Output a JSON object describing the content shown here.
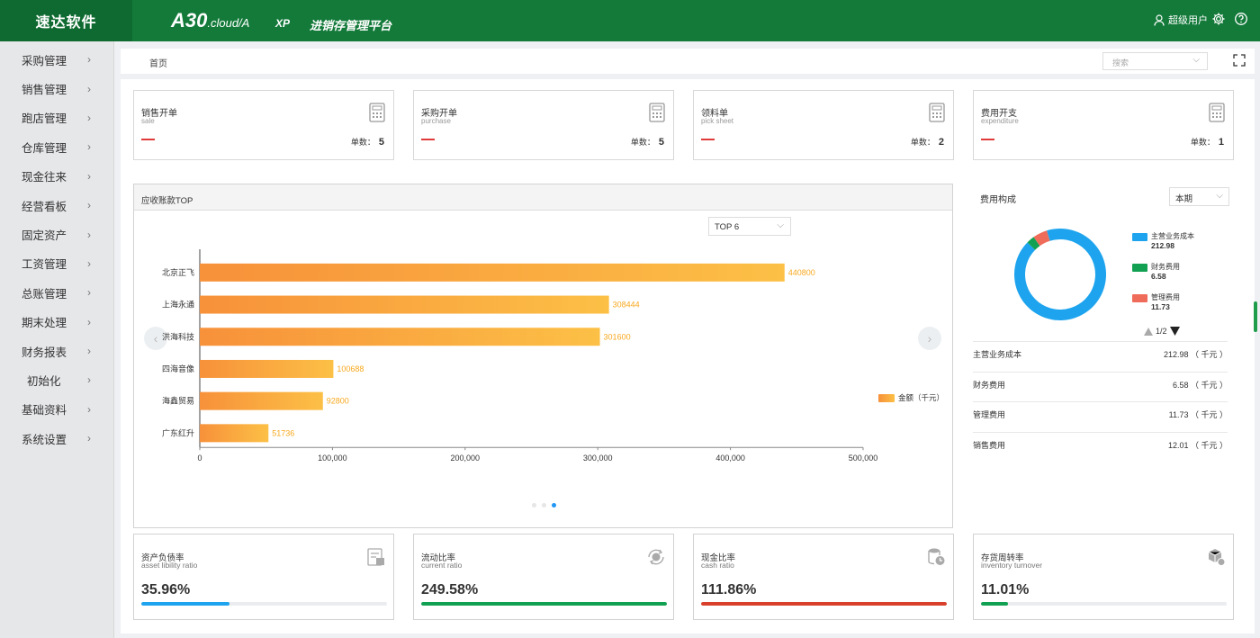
{
  "header": {
    "brand": "速达软件",
    "product_main": "A30",
    "product_sub": ".cloud/A",
    "edition": "XP",
    "platform": "进销存管理平台",
    "user": "超级用户"
  },
  "sidebar": {
    "items": [
      {
        "label": "采购管理"
      },
      {
        "label": "销售管理"
      },
      {
        "label": "跑店管理"
      },
      {
        "label": "仓库管理"
      },
      {
        "label": "现金往来"
      },
      {
        "label": "经营看板"
      },
      {
        "label": "固定资产"
      },
      {
        "label": "工资管理"
      },
      {
        "label": "总账管理"
      },
      {
        "label": "期末处理"
      },
      {
        "label": "财务报表"
      },
      {
        "label": "初始化"
      },
      {
        "label": "基础资料"
      },
      {
        "label": "系统设置"
      }
    ]
  },
  "breadcrumb": {
    "home": "首页"
  },
  "search": {
    "placeholder": "搜索"
  },
  "cards": [
    {
      "title": "销售开单",
      "subtitle": "sale",
      "count_label": "单数：",
      "count": "5"
    },
    {
      "title": "采购开单",
      "subtitle": "purchase",
      "count_label": "单数：",
      "count": "5"
    },
    {
      "title": "领料单",
      "subtitle": "pick sheet",
      "count_label": "单数：",
      "count": "2"
    },
    {
      "title": "费用开支",
      "subtitle": "expenditure",
      "count_label": "单数：",
      "count": "1"
    }
  ],
  "receivables": {
    "title": "应收账款TOP",
    "selector": "TOP 6",
    "legend": "金额（千元）"
  },
  "chart_data": {
    "type": "bar",
    "orientation": "horizontal",
    "categories": [
      "北京正飞",
      "上海永通",
      "洪海科技",
      "四海音像",
      "海鑫贸易",
      "广东红升"
    ],
    "series": [
      {
        "name": "金额（千元）",
        "values": [
          440800,
          308444,
          301600,
          100688,
          92800,
          51736
        ]
      }
    ],
    "xlim": [
      0,
      500000
    ],
    "xticks": [
      "0",
      "100,000",
      "200,000",
      "300,000",
      "400,000",
      "500,000"
    ],
    "colors": [
      "#f7913a",
      "#fcc046"
    ],
    "label_color": "#f7a81e"
  },
  "expense": {
    "title": "费用构成",
    "period": "本期",
    "pager": "1/2",
    "pie_data": [
      {
        "name": "主营业务成本",
        "value": "212.98",
        "color": "#1ea4ee"
      },
      {
        "name": "财务费用",
        "value": "6.58",
        "color": "#12a152"
      },
      {
        "name": "管理费用",
        "value": "11.73",
        "color": "#ef6b5a"
      }
    ],
    "rows": [
      {
        "name": "主营业务成本",
        "value": "212.98 （ 千元 ）"
      },
      {
        "name": "财务费用",
        "value": "6.58 （ 千元 ）"
      },
      {
        "name": "管理费用",
        "value": "11.73 （ 千元 ）"
      },
      {
        "name": "销售费用",
        "value": "12.01 （ 千元 ）"
      }
    ]
  },
  "ratios": [
    {
      "title": "资产负债率",
      "subtitle": "asset libility ratio",
      "value": "35.96%",
      "level": 0.36,
      "color": "#1ea4ee",
      "icon": "receipt-icon"
    },
    {
      "title": "流动比率",
      "subtitle": "current ratio",
      "value": "249.58%",
      "level": 1.0,
      "color": "#12a152",
      "icon": "cash-flow-icon"
    },
    {
      "title": "现金比率",
      "subtitle": "cash ratio",
      "value": "111.86%",
      "level": 1.0,
      "color": "#d8402b",
      "icon": "coins-icon"
    },
    {
      "title": "存货周转率",
      "subtitle": "inventory turnover",
      "value": "11.01%",
      "level": 0.11,
      "color": "#12a152",
      "icon": "box-icon"
    }
  ]
}
